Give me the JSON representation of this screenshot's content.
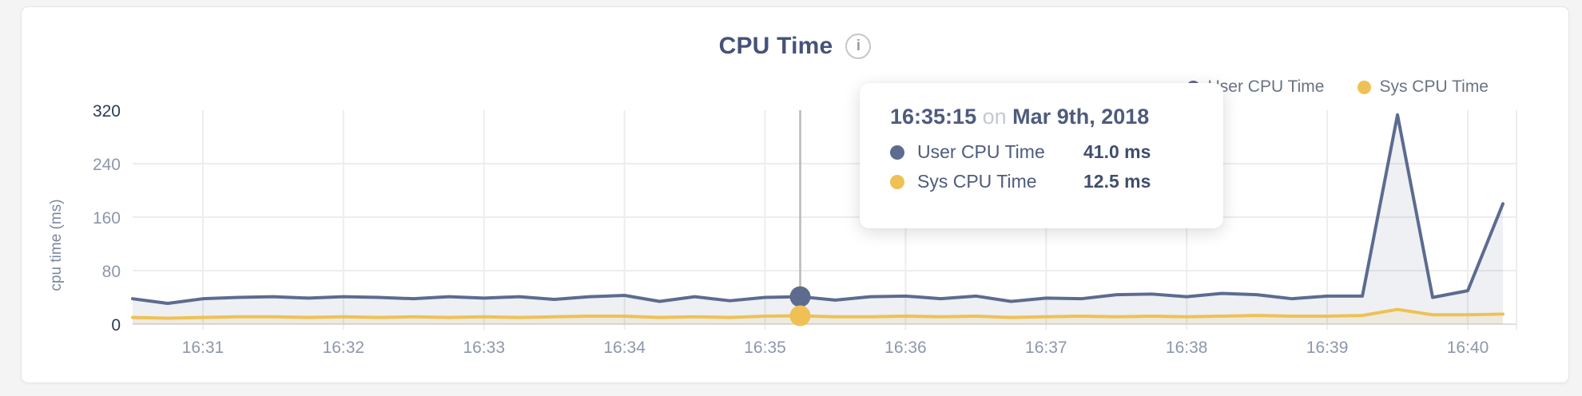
{
  "header": {
    "title": "CPU Time",
    "info_icon_glyph": "i"
  },
  "legend": {
    "items": [
      {
        "label": "User CPU Time",
        "color": "#5d6b8f"
      },
      {
        "label": "Sys CPU Time",
        "color": "#efc155"
      }
    ]
  },
  "axes": {
    "y_label": "cpu time (ms)"
  },
  "tooltip": {
    "time": "16:35:15",
    "connector": "on",
    "date": "Mar 9th, 2018",
    "rows": [
      {
        "label": "User CPU Time",
        "value": "41.0 ms",
        "color": "#5d6b8f"
      },
      {
        "label": "Sys CPU Time",
        "value": "12.5 ms",
        "color": "#efc155"
      }
    ]
  },
  "chart_data": {
    "type": "area",
    "title": "CPU Time",
    "ylabel": "cpu time (ms)",
    "ylim": [
      0,
      320
    ],
    "yticks": [
      0,
      80,
      160,
      240,
      320
    ],
    "xticks": [
      "16:31",
      "16:32",
      "16:33",
      "16:34",
      "16:35",
      "16:36",
      "16:37",
      "16:38",
      "16:39",
      "16:40"
    ],
    "x": [
      "16:30:30",
      "16:30:45",
      "16:31:00",
      "16:31:15",
      "16:31:30",
      "16:31:45",
      "16:32:00",
      "16:32:15",
      "16:32:30",
      "16:32:45",
      "16:33:00",
      "16:33:15",
      "16:33:30",
      "16:33:45",
      "16:34:00",
      "16:34:15",
      "16:34:30",
      "16:34:45",
      "16:35:00",
      "16:35:15",
      "16:35:30",
      "16:35:45",
      "16:36:00",
      "16:36:15",
      "16:36:30",
      "16:36:45",
      "16:37:00",
      "16:37:15",
      "16:37:30",
      "16:37:45",
      "16:38:00",
      "16:38:15",
      "16:38:30",
      "16:38:45",
      "16:39:00",
      "16:39:15",
      "16:39:30",
      "16:39:45",
      "16:40:00",
      "16:40:15"
    ],
    "series": [
      {
        "name": "User CPU Time",
        "color": "#5d6b8f",
        "fill": "rgba(93,107,143,0.10)",
        "values": [
          38,
          31,
          38,
          40,
          41,
          39,
          41,
          40,
          38,
          41,
          39,
          41,
          37,
          41,
          43,
          34,
          41,
          35,
          40,
          41,
          36,
          41,
          42,
          38,
          42,
          34,
          39,
          38,
          44,
          45,
          41,
          46,
          44,
          38,
          42,
          42,
          313,
          40,
          50,
          180
        ]
      },
      {
        "name": "Sys CPU Time",
        "color": "#efc155",
        "fill": "rgba(239,193,85,0.13)",
        "values": [
          10,
          9,
          10,
          11,
          11,
          10,
          11,
          10,
          11,
          10,
          11,
          10,
          11,
          12,
          12,
          10,
          11,
          10,
          12,
          12.5,
          11,
          11,
          12,
          11,
          12,
          10,
          11,
          12,
          11,
          12,
          11,
          12,
          13,
          12,
          12,
          13,
          22,
          14,
          14,
          15
        ]
      }
    ],
    "hover": {
      "index": 19,
      "time": "16:35:15",
      "date": "Mar 9th, 2018",
      "values": [
        41.0,
        12.5
      ]
    },
    "grid": true,
    "legend_position": "top-right",
    "colors": {
      "gridline": "#ededed",
      "axis_line": "#dedede",
      "hover_line": "#b9b9b9",
      "ytick_edge": "#2d3a57",
      "tick": "#8d97ab"
    }
  }
}
